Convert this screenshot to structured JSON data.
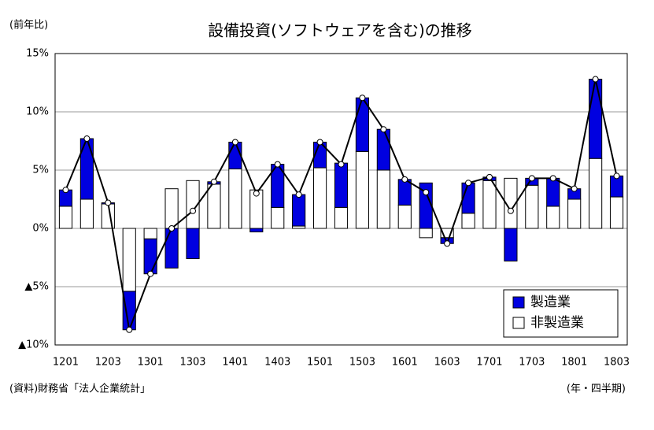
{
  "chart_data": {
    "type": "stacked_bar_line",
    "title": "設備投資(ソフトウェアを含む)の推移",
    "y_label": "(前年比)",
    "source": "(資料)財務省「法人企業統計」",
    "x_label": "(年・四半期)",
    "categories": [
      "1201",
      null,
      "1203",
      null,
      "1301",
      null,
      "1303",
      null,
      "1401",
      null,
      "1403",
      null,
      "1501",
      null,
      "1503",
      null,
      "1601",
      null,
      "1603",
      null,
      "1701",
      null,
      "1703",
      null,
      "1801",
      null,
      "1803"
    ],
    "series": [
      {
        "name": "非製造業",
        "color": "#ffffff",
        "values": [
          1.9,
          2.5,
          2.1,
          -5.4,
          -0.9,
          3.4,
          4.1,
          3.8,
          5.1,
          3.3,
          1.8,
          0.2,
          5.2,
          1.8,
          6.6,
          5.0,
          2.0,
          -0.8,
          -0.8,
          1.3,
          4.1,
          4.3,
          3.7,
          1.9,
          2.5,
          6.0,
          2.7
        ]
      },
      {
        "name": "製造業",
        "color": "#0000e0",
        "values": [
          1.4,
          5.2,
          0.1,
          -3.3,
          -3.0,
          -3.4,
          -2.6,
          0.2,
          2.3,
          -0.3,
          3.7,
          2.7,
          2.2,
          3.8,
          4.6,
          3.5,
          2.2,
          3.9,
          -0.5,
          2.6,
          0.3,
          -2.8,
          0.6,
          2.4,
          0.9,
          6.8,
          1.8
        ]
      }
    ],
    "line": {
      "color": "#000000",
      "values": [
        3.3,
        7.7,
        2.2,
        -8.7,
        -3.9,
        0.0,
        1.5,
        4.0,
        7.4,
        3.0,
        5.5,
        2.9,
        7.4,
        5.5,
        11.2,
        8.5,
        4.2,
        3.1,
        -1.3,
        3.9,
        4.4,
        1.5,
        4.3,
        4.3,
        3.4,
        12.8,
        4.5
      ]
    },
    "ylim": [
      -10,
      15
    ],
    "yticks": [
      {
        "value": -10,
        "label": "▲10%"
      },
      {
        "value": -5,
        "label": "▲5%"
      },
      {
        "value": 0,
        "label": "0%"
      },
      {
        "value": 5,
        "label": "5%"
      },
      {
        "value": 10,
        "label": "10%"
      },
      {
        "value": 15,
        "label": "15%"
      }
    ],
    "grid": true
  }
}
